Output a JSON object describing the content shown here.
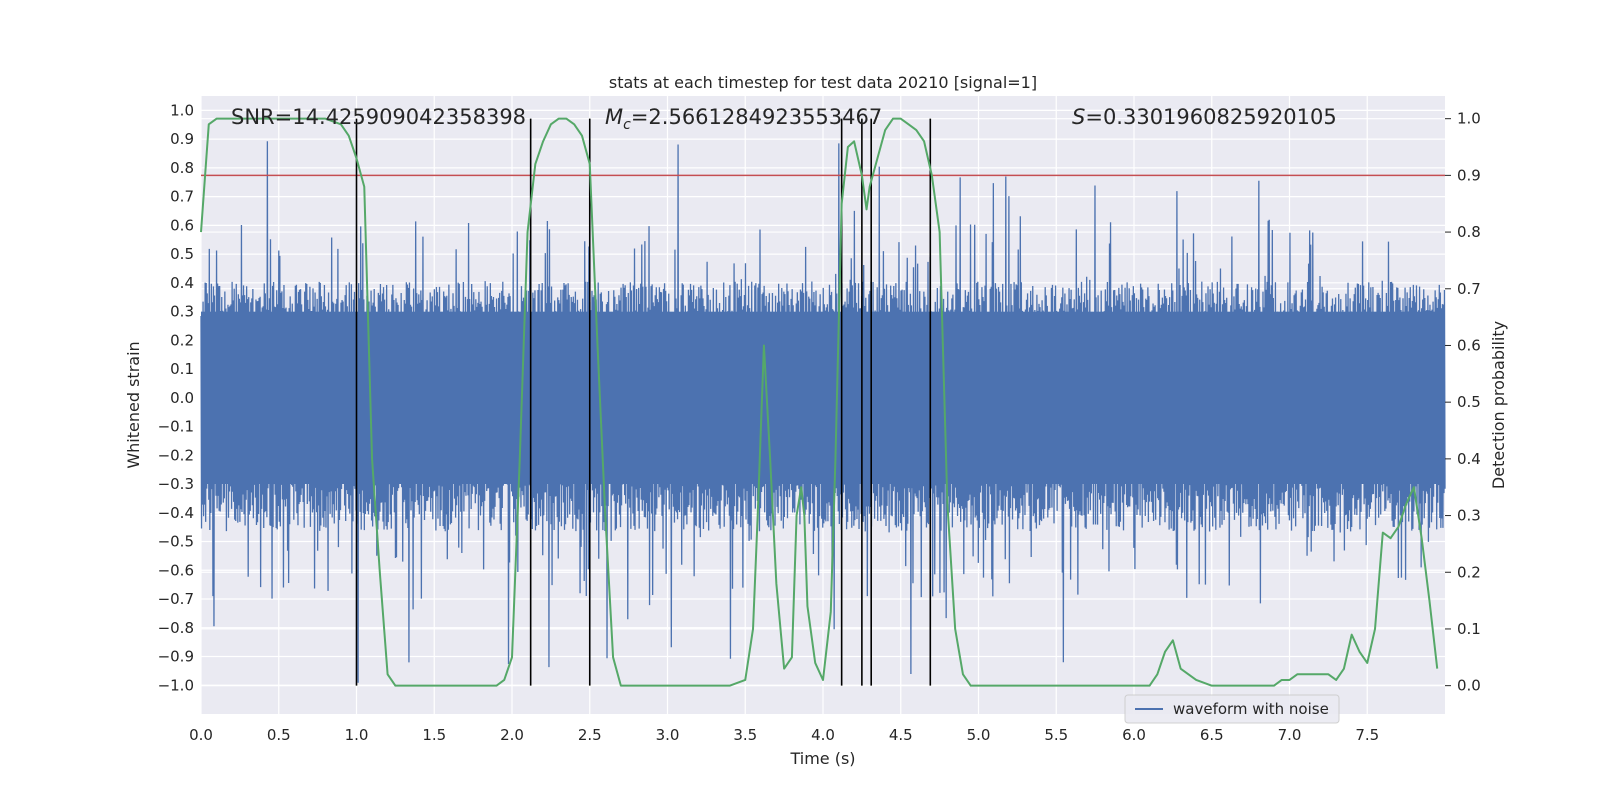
{
  "chart_data": {
    "type": "line",
    "title": "stats at each timestep for test data 20210 [signal=1]",
    "xlabel": "Time (s)",
    "ylabel": "Whitened strain",
    "ylabel_right": "Detection probability",
    "xlim": [
      0.0,
      8.0
    ],
    "ylim": [
      -1.1,
      1.05
    ],
    "ylim_right": [
      -0.05,
      1.04
    ],
    "x_ticks": [
      "0.0",
      "0.5",
      "1.0",
      "1.5",
      "2.0",
      "2.5",
      "3.0",
      "3.5",
      "4.0",
      "4.5",
      "5.0",
      "5.5",
      "6.0",
      "6.5",
      "7.0",
      "7.5"
    ],
    "y_ticks": [
      "1.0",
      "0.9",
      "0.8",
      "0.7",
      "0.6",
      "0.5",
      "0.4",
      "0.3",
      "0.2",
      "0.1",
      "0.0",
      "−0.1",
      "−0.2",
      "−0.3",
      "−0.4",
      "−0.5",
      "−0.6",
      "−0.7",
      "−0.8",
      "−0.9",
      "−1.0"
    ],
    "y_right_ticks": [
      "1.0",
      "0.9",
      "0.8",
      "0.7",
      "0.6",
      "0.5",
      "0.4",
      "0.3",
      "0.2",
      "0.1",
      "0.0"
    ],
    "annotations": {
      "snr": "SNR=14.425909042358398",
      "mc_symbol": "M",
      "mc_sub": "c",
      "mc_value": "=2.5661284923553467",
      "s_symbol": "S",
      "s_value": "=0.3301960825920105"
    },
    "legend": {
      "label": "waveform with noise",
      "position": "lower-right"
    },
    "threshold": {
      "axis": "right",
      "value": 0.9,
      "color": "#c44e52"
    },
    "vertical_lines": [
      1.0,
      2.12,
      2.5,
      4.12,
      4.25,
      4.31,
      4.69
    ],
    "waveform": {
      "name": "waveform with noise",
      "color": "#4c72b0",
      "duration": 8.0,
      "baseline_amplitude": 0.3,
      "peak_max": 0.93,
      "trough_min": -1.0
    },
    "probability": {
      "name": "Detection probability",
      "color": "#55a868",
      "x": [
        0.0,
        0.05,
        0.1,
        0.2,
        0.3,
        0.5,
        0.7,
        0.8,
        0.9,
        0.95,
        1.0,
        1.05,
        1.1,
        1.15,
        1.2,
        1.25,
        1.3,
        1.4,
        1.5,
        1.6,
        1.7,
        1.8,
        1.9,
        1.95,
        2.0,
        2.05,
        2.1,
        2.15,
        2.2,
        2.25,
        2.3,
        2.35,
        2.4,
        2.45,
        2.5,
        2.55,
        2.6,
        2.65,
        2.7,
        2.75,
        2.8,
        2.9,
        3.0,
        3.1,
        3.2,
        3.3,
        3.4,
        3.5,
        3.55,
        3.58,
        3.62,
        3.66,
        3.7,
        3.75,
        3.8,
        3.83,
        3.86,
        3.88,
        3.9,
        3.95,
        4.0,
        4.05,
        4.08,
        4.12,
        4.16,
        4.2,
        4.25,
        4.28,
        4.3,
        4.35,
        4.4,
        4.45,
        4.5,
        4.55,
        4.6,
        4.65,
        4.7,
        4.75,
        4.8,
        4.85,
        4.9,
        4.95,
        5.0,
        5.1,
        5.3,
        5.5,
        5.7,
        5.9,
        6.1,
        6.15,
        6.2,
        6.25,
        6.3,
        6.35,
        6.4,
        6.5,
        6.6,
        6.7,
        6.8,
        6.9,
        6.95,
        7.0,
        7.05,
        7.1,
        7.15,
        7.2,
        7.25,
        7.3,
        7.35,
        7.4,
        7.45,
        7.5,
        7.55,
        7.6,
        7.65,
        7.7,
        7.75,
        7.8,
        7.85,
        7.9,
        7.95
      ],
      "y": [
        0.8,
        0.99,
        1.0,
        1.0,
        1.0,
        1.0,
        1.0,
        1.0,
        0.99,
        0.97,
        0.93,
        0.88,
        0.4,
        0.2,
        0.02,
        0.0,
        0.0,
        0.0,
        0.0,
        0.0,
        0.0,
        0.0,
        0.0,
        0.01,
        0.05,
        0.4,
        0.8,
        0.92,
        0.96,
        0.99,
        1.0,
        1.0,
        0.99,
        0.97,
        0.92,
        0.6,
        0.3,
        0.05,
        0.0,
        0.0,
        0.0,
        0.0,
        0.0,
        0.0,
        0.0,
        0.0,
        0.0,
        0.01,
        0.1,
        0.3,
        0.6,
        0.4,
        0.18,
        0.03,
        0.05,
        0.3,
        0.35,
        0.3,
        0.14,
        0.04,
        0.01,
        0.13,
        0.4,
        0.85,
        0.95,
        0.96,
        0.9,
        0.84,
        0.88,
        0.93,
        0.98,
        1.0,
        1.0,
        0.99,
        0.98,
        0.96,
        0.9,
        0.8,
        0.32,
        0.1,
        0.02,
        0.0,
        0.0,
        0.0,
        0.0,
        0.0,
        0.0,
        0.0,
        0.0,
        0.02,
        0.06,
        0.08,
        0.03,
        0.02,
        0.01,
        0.0,
        0.0,
        0.0,
        0.0,
        0.0,
        0.01,
        0.01,
        0.02,
        0.02,
        0.02,
        0.02,
        0.02,
        0.01,
        0.03,
        0.09,
        0.06,
        0.04,
        0.1,
        0.27,
        0.26,
        0.28,
        0.32,
        0.35,
        0.26,
        0.15,
        0.03
      ]
    },
    "colors": {
      "plot_background": "#eaeaf2",
      "grid": "#ffffff",
      "vline": "#000000"
    }
  }
}
